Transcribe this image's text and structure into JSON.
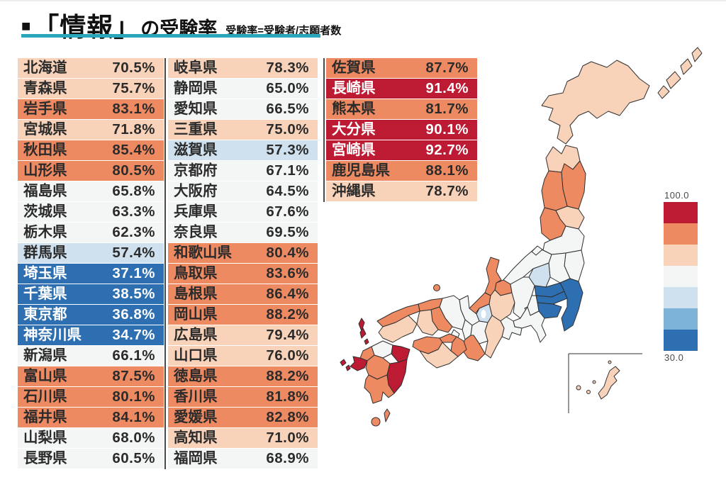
{
  "header": {
    "bullet": "■",
    "main": "「情報」",
    "suffix": "の受験率",
    "note": "受験率=受験者/志願者数",
    "underline_color": "#2aa5ba"
  },
  "legend": {
    "max_label": "100.0",
    "min_label": "30.0",
    "bins": [
      {
        "min": 90,
        "color": "#bd1a33",
        "text": "#ffffff"
      },
      {
        "min": 80,
        "color": "#ee8a62",
        "text": "#2b2b2b"
      },
      {
        "min": 70,
        "color": "#f8d2b9",
        "text": "#2b2b2b"
      },
      {
        "min": 60,
        "color": "#f3f6f5",
        "text": "#2b2b2b"
      },
      {
        "min": 50,
        "color": "#cfe1ee",
        "text": "#2b2b2b"
      },
      {
        "min": 40,
        "color": "#7cb3d7",
        "text": "#ffffff"
      },
      {
        "min": 0,
        "color": "#2d6fb1",
        "text": "#ffffff"
      }
    ]
  },
  "chart_data": {
    "type": "heatmap",
    "subtype": "choropleth-japan-prefectures",
    "title": "「情報」の受験率",
    "note": "受験率=受験者/志願者数",
    "unit": "%",
    "colorbar": {
      "max": 100.0,
      "min": 30.0,
      "bin_size": 10,
      "orientation": "vertical",
      "position": "right"
    },
    "table_column_splits": [
      20,
      40,
      47
    ],
    "prefectures": [
      {
        "name": "北海道",
        "value": 70.5
      },
      {
        "name": "青森県",
        "value": 75.7
      },
      {
        "name": "岩手県",
        "value": 83.1
      },
      {
        "name": "宮城県",
        "value": 71.8
      },
      {
        "name": "秋田県",
        "value": 85.4
      },
      {
        "name": "山形県",
        "value": 80.5
      },
      {
        "name": "福島県",
        "value": 65.8
      },
      {
        "name": "茨城県",
        "value": 63.3
      },
      {
        "name": "栃木県",
        "value": 62.3
      },
      {
        "name": "群馬県",
        "value": 57.4
      },
      {
        "name": "埼玉県",
        "value": 37.1
      },
      {
        "name": "千葉県",
        "value": 38.5
      },
      {
        "name": "東京都",
        "value": 36.8
      },
      {
        "name": "神奈川県",
        "value": 34.7
      },
      {
        "name": "新潟県",
        "value": 66.1
      },
      {
        "name": "富山県",
        "value": 87.5
      },
      {
        "name": "石川県",
        "value": 80.1
      },
      {
        "name": "福井県",
        "value": 84.1
      },
      {
        "name": "山梨県",
        "value": 68.0
      },
      {
        "name": "長野県",
        "value": 60.5
      },
      {
        "name": "岐阜県",
        "value": 78.3
      },
      {
        "name": "静岡県",
        "value": 65.0
      },
      {
        "name": "愛知県",
        "value": 66.5
      },
      {
        "name": "三重県",
        "value": 75.0
      },
      {
        "name": "滋賀県",
        "value": 57.3
      },
      {
        "name": "京都府",
        "value": 67.1
      },
      {
        "name": "大阪府",
        "value": 64.5
      },
      {
        "name": "兵庫県",
        "value": 67.6
      },
      {
        "name": "奈良県",
        "value": 69.5
      },
      {
        "name": "和歌山県",
        "value": 80.4
      },
      {
        "name": "鳥取県",
        "value": 83.6
      },
      {
        "name": "島根県",
        "value": 86.4
      },
      {
        "name": "岡山県",
        "value": 88.2
      },
      {
        "name": "広島県",
        "value": 79.4
      },
      {
        "name": "山口県",
        "value": 76.0
      },
      {
        "name": "徳島県",
        "value": 88.2
      },
      {
        "name": "香川県",
        "value": 81.8
      },
      {
        "name": "愛媛県",
        "value": 82.8
      },
      {
        "name": "高知県",
        "value": 71.0
      },
      {
        "name": "福岡県",
        "value": 68.9
      },
      {
        "name": "佐賀県",
        "value": 87.7
      },
      {
        "name": "長崎県",
        "value": 91.4
      },
      {
        "name": "熊本県",
        "value": 81.7
      },
      {
        "name": "大分県",
        "value": 90.1
      },
      {
        "name": "宮崎県",
        "value": 92.7
      },
      {
        "name": "鹿児島県",
        "value": 88.1
      },
      {
        "name": "沖縄県",
        "value": 78.7
      }
    ]
  }
}
